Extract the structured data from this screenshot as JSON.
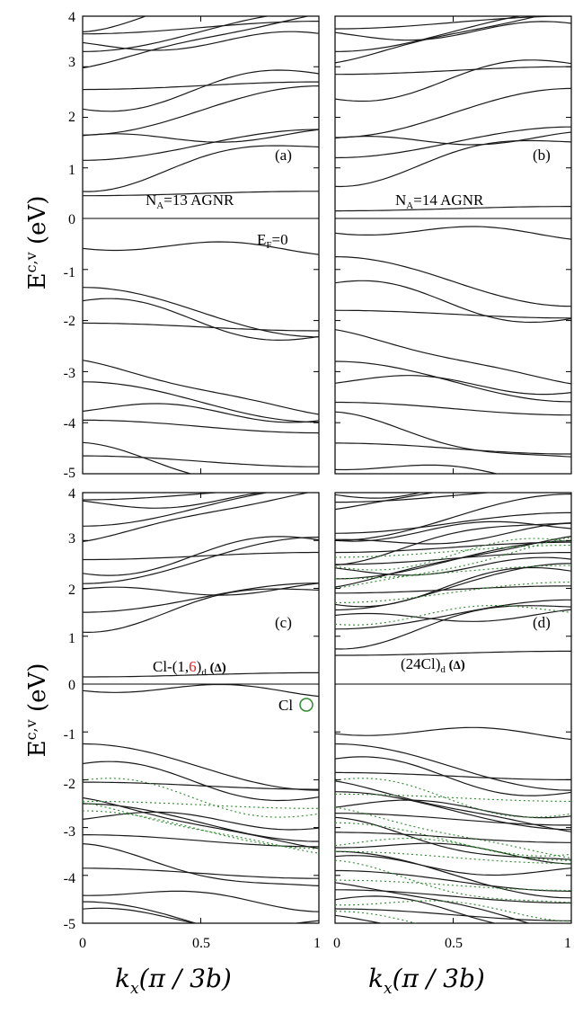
{
  "chart_data": [
    {
      "type": "line",
      "panel": "a",
      "panel_label": "(a)",
      "annotation": "NA=13 AGNR",
      "annotation_parts": [
        "N",
        "A",
        "=13 AGNR"
      ],
      "fermi_label_parts": [
        "E",
        "F",
        "=0"
      ],
      "xlim": [
        0,
        1
      ],
      "ylim": [
        -5,
        4
      ],
      "conduction_start": [
        0.45,
        0.65,
        1.15,
        1.55,
        1.65,
        2.2,
        2.55,
        3.0,
        3.3,
        3.4,
        3.65,
        3.8
      ],
      "valence_start": [
        -0.5,
        -1.35,
        -1.65,
        -2.05,
        -2.8,
        -3.2,
        -3.7,
        -3.95,
        -4.5,
        -4.65
      ]
    },
    {
      "type": "line",
      "panel": "b",
      "panel_label": "(b)",
      "annotation": "NA=14 AGNR",
      "annotation_parts": [
        "N",
        "A",
        "=14 AGNR"
      ],
      "xlim": [
        0,
        1
      ],
      "ylim": [
        -5,
        4
      ],
      "conduction_start": [
        0.15,
        0.75,
        1.2,
        1.5,
        1.6,
        2.4,
        2.85,
        3.1,
        3.3,
        3.6,
        3.75
      ],
      "valence_start": [
        -0.2,
        -0.75,
        -1.3,
        -1.8,
        -2.2,
        -2.8,
        -3.15,
        -3.6,
        -3.9,
        -4.4,
        -4.8
      ]
    },
    {
      "type": "line",
      "panel": "c",
      "panel_label": "(c)",
      "annotation_parts": [
        "Cl-(1,",
        "6",
        ")",
        "d",
        " (",
        "Δ",
        ")"
      ],
      "cl_legend": "Cl",
      "xlim": [
        0,
        1
      ],
      "ylim": [
        -5,
        4
      ],
      "conduction_start": [
        0.15,
        1.2,
        1.5,
        1.9,
        2.1,
        2.35,
        2.6,
        3.0,
        3.3,
        3.75,
        3.85
      ],
      "valence_start": [
        -0.05,
        -1.25,
        -1.7,
        -2.05,
        -2.4,
        -2.5,
        -2.75,
        -3.15,
        -3.45,
        -3.85,
        -4.3,
        -4.55,
        -4.8
      ],
      "cl_projected_bands": [
        -2.05,
        -2.45,
        -2.5,
        -2.65
      ]
    },
    {
      "type": "line",
      "panel": "d",
      "panel_label": "(d)",
      "annotation_parts": [
        "(24Cl)",
        "d",
        " (",
        "Δ",
        ")"
      ],
      "xlim": [
        0,
        1
      ],
      "ylim": [
        -5,
        4
      ],
      "conduction_start": [
        0.6,
        0.85,
        1.15,
        1.35,
        1.55,
        1.7,
        1.9,
        2.05,
        2.2,
        2.35,
        2.5,
        2.6,
        2.75,
        2.9,
        3.0,
        3.1,
        3.15,
        3.6,
        3.8,
        3.95
      ],
      "valence_start": [
        -0.95,
        -1.25,
        -1.6,
        -1.85,
        -2.05,
        -2.25,
        -2.5,
        -2.7,
        -2.9,
        -3.1,
        -3.3,
        -3.5,
        -3.7,
        -3.9,
        -4.1,
        -4.3,
        -4.5,
        -4.7,
        -4.9
      ],
      "cl_projected_bands": [
        -2.05,
        -2.3,
        -2.6,
        -2.9,
        -3.3,
        -3.5,
        -3.8,
        -4.1,
        -4.5,
        -4.75,
        1.35,
        1.7,
        1.95,
        2.2,
        2.45,
        2.65
      ]
    }
  ],
  "axes": {
    "ylabel_parts": [
      "E",
      "c,v",
      " (eV)"
    ],
    "xlabel_parts": [
      "k",
      "x",
      "(π / 3b)"
    ],
    "y_ticks": [
      "4",
      "3",
      "2",
      "1",
      "0",
      "-1",
      "-2",
      "-3",
      "-4",
      "-5"
    ],
    "x_ticks_left": [
      "0",
      "0.5",
      "1"
    ],
    "x_ticks_right": [
      "0",
      "0.5",
      "1"
    ]
  },
  "colors": {
    "band": "#1a1a1a",
    "cl_projection": "#2e8b2e",
    "highlight": "#e02020"
  }
}
